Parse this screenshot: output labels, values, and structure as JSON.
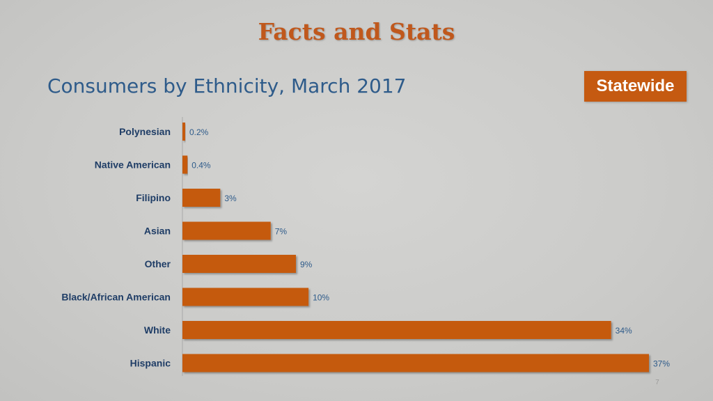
{
  "slide": {
    "title": "Facts and Stats",
    "badge": "Statewide",
    "page_number": "7"
  },
  "colors": {
    "accent": "#c55a11",
    "title": "#c0581c",
    "text_blue": "#2e5b8a"
  },
  "chart_data": {
    "type": "bar",
    "orientation": "horizontal",
    "title": "Consumers by Ethnicity, March 2017",
    "categories": [
      "Polynesian",
      "Native American",
      "Filipino",
      "Asian",
      "Other",
      "Black/African American",
      "White",
      "Hispanic"
    ],
    "values": [
      0.2,
      0.4,
      3,
      7,
      9,
      10,
      34,
      37
    ],
    "value_labels": [
      "0.2%",
      "0.4%",
      "3%",
      "7%",
      "9%",
      "10%",
      "34%",
      "37%"
    ],
    "xlim": [
      0,
      37
    ],
    "grid": false,
    "legend": "none"
  }
}
